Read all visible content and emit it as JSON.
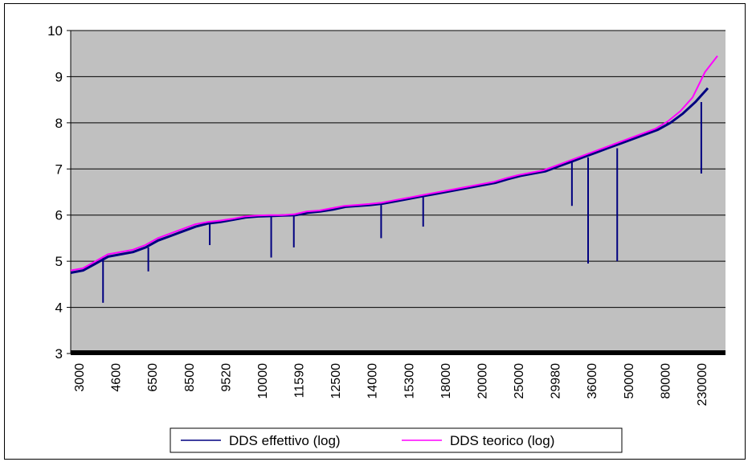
{
  "chart_data": {
    "type": "line",
    "title": "",
    "xlabel": "",
    "ylabel": "",
    "ylim": [
      3,
      10
    ],
    "yticks": [
      "3",
      "4",
      "5",
      "6",
      "7",
      "8",
      "9",
      "10"
    ],
    "x_tick_labels": [
      "3000",
      "4600",
      "6500",
      "8500",
      "9520",
      "10000",
      "11590",
      "12500",
      "14000",
      "15300",
      "18000",
      "20000",
      "25000",
      "29980",
      "36000",
      "50000",
      "80000",
      "230000"
    ],
    "grid": "horizontal",
    "plot_area_color": "#c0c0c0",
    "legend_position": "bottom",
    "series": [
      {
        "name": "DDS effettivo (log)",
        "color": "#000080",
        "values": [
          4.75,
          4.8,
          4.95,
          5.1,
          5.15,
          5.2,
          5.3,
          5.45,
          5.55,
          5.65,
          5.75,
          5.82,
          5.85,
          5.9,
          5.95,
          5.97,
          5.98,
          5.99,
          6.0,
          6.05,
          6.08,
          6.12,
          6.18,
          6.2,
          6.22,
          6.25,
          6.3,
          6.35,
          6.4,
          6.45,
          6.5,
          6.55,
          6.6,
          6.65,
          6.7,
          6.78,
          6.85,
          6.9,
          6.95,
          7.05,
          7.15,
          7.25,
          7.35,
          7.45,
          7.55,
          7.65,
          7.75,
          7.85,
          8.0,
          8.2,
          8.45,
          8.75
        ],
        "dips": [
          {
            "x": 0.05,
            "value": 4.1
          },
          {
            "x": 0.12,
            "value": 4.78
          },
          {
            "x": 0.215,
            "value": 5.35
          },
          {
            "x": 0.31,
            "value": 5.08
          },
          {
            "x": 0.345,
            "value": 5.3
          },
          {
            "x": 0.48,
            "value": 5.5
          },
          {
            "x": 0.545,
            "value": 5.75
          },
          {
            "x": 0.775,
            "value": 6.2
          },
          {
            "x": 0.8,
            "value": 4.95
          },
          {
            "x": 0.845,
            "value": 5.0
          },
          {
            "x": 0.975,
            "value": 6.9
          }
        ]
      },
      {
        "name": "DDS teorico (log)",
        "color": "#ff00ff",
        "values": [
          4.8,
          4.85,
          5.0,
          5.15,
          5.2,
          5.25,
          5.35,
          5.5,
          5.6,
          5.7,
          5.8,
          5.85,
          5.88,
          5.92,
          5.97,
          5.99,
          6.0,
          6.0,
          6.02,
          6.08,
          6.1,
          6.15,
          6.2,
          6.22,
          6.24,
          6.27,
          6.32,
          6.37,
          6.42,
          6.47,
          6.52,
          6.57,
          6.62,
          6.67,
          6.72,
          6.8,
          6.87,
          6.92,
          6.97,
          7.07,
          7.17,
          7.27,
          7.37,
          7.47,
          7.57,
          7.67,
          7.77,
          7.87,
          8.03,
          8.25,
          8.55,
          9.1,
          9.45
        ]
      }
    ]
  }
}
